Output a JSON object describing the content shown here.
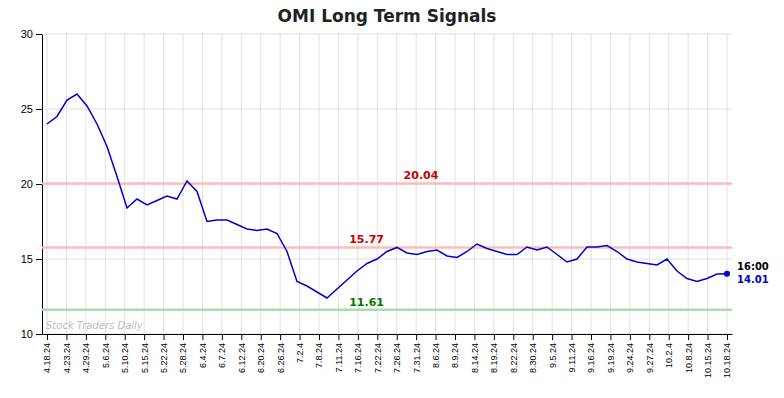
{
  "chart_data": {
    "type": "line",
    "title": "OMI Long Term Signals",
    "color": "#0000cc",
    "grid": true,
    "xlim": [
      -0.5,
      68.5
    ],
    "ylim": [
      10,
      30
    ],
    "yticks": [
      10,
      15,
      20,
      25,
      30
    ],
    "xticks": [
      {
        "value": 0,
        "label": "4.18.24"
      },
      {
        "value": 1.942857,
        "label": "4.23.24"
      },
      {
        "value": 3.885714,
        "label": "4.29.24"
      },
      {
        "value": 5.828571,
        "label": "5.6.24"
      },
      {
        "value": 7.771429,
        "label": "5.10.24"
      },
      {
        "value": 9.714286,
        "label": "5.15.24"
      },
      {
        "value": 11.657143,
        "label": "5.22.24"
      },
      {
        "value": 13.6,
        "label": "5.28.24"
      },
      {
        "value": 15.542857,
        "label": "6.4.24"
      },
      {
        "value": 17.485714,
        "label": "6.7.24"
      },
      {
        "value": 19.428571,
        "label": "6.12.24"
      },
      {
        "value": 21.371429,
        "label": "6.20.24"
      },
      {
        "value": 23.314286,
        "label": "6.26.24"
      },
      {
        "value": 25.257143,
        "label": "7.2.4"
      },
      {
        "value": 27.2,
        "label": "7.8.24"
      },
      {
        "value": 29.142857,
        "label": "7.11.24"
      },
      {
        "value": 31.085714,
        "label": "7.16.24"
      },
      {
        "value": 33.028571,
        "label": "7.22.24"
      },
      {
        "value": 34.971429,
        "label": "7.26.24"
      },
      {
        "value": 36.914286,
        "label": "7.31.24"
      },
      {
        "value": 38.857143,
        "label": "8.6.24"
      },
      {
        "value": 40.8,
        "label": "8.9.24"
      },
      {
        "value": 42.742857,
        "label": "8.14.24"
      },
      {
        "value": 44.685714,
        "label": "8.19.24"
      },
      {
        "value": 46.628571,
        "label": "8.22.24"
      },
      {
        "value": 48.571429,
        "label": "8.30.24"
      },
      {
        "value": 50.514286,
        "label": "9.5.24"
      },
      {
        "value": 52.457143,
        "label": "9.11.24"
      },
      {
        "value": 54.4,
        "label": "9.16.24"
      },
      {
        "value": 56.342857,
        "label": "9.19.24"
      },
      {
        "value": 58.285714,
        "label": "9.24.24"
      },
      {
        "value": 60.228571,
        "label": "9.27.24"
      },
      {
        "value": 62.171429,
        "label": "10.2.4"
      },
      {
        "value": 64.114286,
        "label": "10.8.24"
      },
      {
        "value": 66.057143,
        "label": "10.15.24"
      },
      {
        "value": 68,
        "label": "10.18.24"
      }
    ],
    "x": [
      0,
      1,
      2,
      3,
      4,
      5,
      6,
      7,
      8,
      9,
      10,
      11,
      12,
      13,
      14,
      15,
      16,
      17,
      18,
      19,
      20,
      21,
      22,
      23,
      24,
      25,
      26,
      27,
      28,
      29,
      30,
      31,
      32,
      33,
      34,
      35,
      36,
      37,
      38,
      39,
      40,
      41,
      42,
      43,
      44,
      45,
      46,
      47,
      48,
      49,
      50,
      51,
      52,
      53,
      54,
      55,
      56,
      57,
      58,
      59,
      60,
      61,
      62,
      63,
      64,
      65,
      66,
      67,
      68
    ],
    "values": [
      24.0,
      24.5,
      25.6,
      26.0,
      25.2,
      24.0,
      22.5,
      20.5,
      18.4,
      19.0,
      18.6,
      18.9,
      19.2,
      19.0,
      20.2,
      19.5,
      17.5,
      17.6,
      17.6,
      17.3,
      17.0,
      16.9,
      17.0,
      16.7,
      15.5,
      13.5,
      13.2,
      12.8,
      12.4,
      13.0,
      13.6,
      14.2,
      14.7,
      15.0,
      15.5,
      15.77,
      15.4,
      15.3,
      15.5,
      15.6,
      15.2,
      15.1,
      15.5,
      16.0,
      15.7,
      15.5,
      15.3,
      15.3,
      15.8,
      15.6,
      15.8,
      15.3,
      14.8,
      15.0,
      15.8,
      15.8,
      15.9,
      15.5,
      15.0,
      14.8,
      14.7,
      14.6,
      15.0,
      14.2,
      13.7,
      13.5,
      13.7,
      14.0,
      14.01
    ],
    "reference_lines": [
      {
        "y": 20.04,
        "label": "20.04",
        "color": "#ffbbbb",
        "label_color": "#cc0000"
      },
      {
        "y": 15.77,
        "label": "15.77",
        "color": "#ffbbbb",
        "label_color": "#cc0000"
      },
      {
        "y": 11.61,
        "label": "11.61",
        "color": "#aaddaa",
        "label_color": "#007700"
      }
    ],
    "annotations": [
      {
        "text": "16:00",
        "color": "#000000"
      },
      {
        "text": "14.01",
        "color": "#0000cc"
      },
      {
        "text": "Stock Traders Daily"
      }
    ]
  }
}
